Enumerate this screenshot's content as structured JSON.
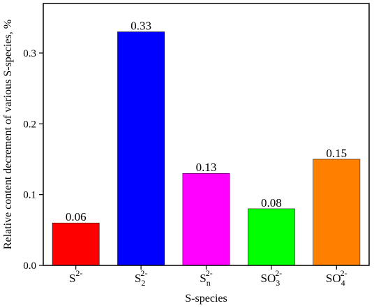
{
  "chart_data": {
    "type": "bar",
    "categories": [
      {
        "base": "S",
        "sub": "",
        "sup": "2-"
      },
      {
        "base": "S",
        "sub": "2",
        "sup": "2-"
      },
      {
        "base": "S",
        "sub": "n",
        "sup": "2-"
      },
      {
        "base": "SO",
        "sub": "3",
        "sup": "2-"
      },
      {
        "base": "SO",
        "sub": "4",
        "sup": "2-"
      }
    ],
    "values": [
      0.06,
      0.33,
      0.13,
      0.08,
      0.15
    ],
    "data_labels": [
      "0.06",
      "0.33",
      "0.13",
      "0.08",
      "0.15"
    ],
    "colors": [
      "#ff0000",
      "#0000ff",
      "#ff00ff",
      "#00ff00",
      "#ff8000"
    ],
    "xlabel": "S-species",
    "ylabel": "Relative content decrement of various S-species, %",
    "ylim": [
      0,
      0.37
    ],
    "yticks": [
      0.0,
      0.1,
      0.2,
      0.3
    ],
    "ytick_labels": [
      "0.0",
      "0.1",
      "0.2",
      "0.3"
    ],
    "grid": false,
    "legend": "none"
  }
}
